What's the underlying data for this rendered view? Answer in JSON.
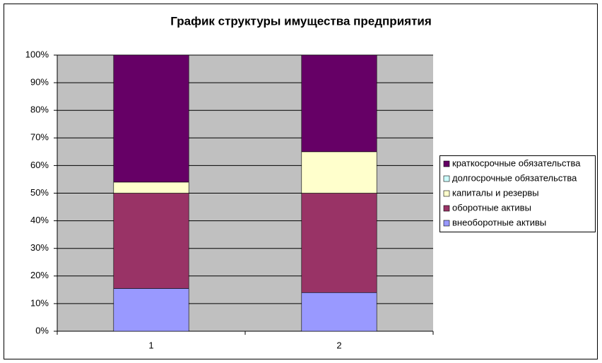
{
  "chart_data": {
    "type": "stacked_bar",
    "title": "График структуры имущества предприятия",
    "categories": [
      "1",
      "2"
    ],
    "series": [
      {
        "name": "внеоборотные активы",
        "color": "#9999ff",
        "values": [
          15.5,
          14
        ]
      },
      {
        "name": "оборотные активы",
        "color": "#993366",
        "values": [
          34.5,
          36
        ]
      },
      {
        "name": "капиталы и резервы",
        "color": "#ffffcc",
        "values": [
          4,
          15
        ]
      },
      {
        "name": "долгосрочные обязательства",
        "color": "#ccffff",
        "values": [
          0,
          0
        ]
      },
      {
        "name": "краткосрочные обязательства",
        "color": "#660066",
        "values": [
          46,
          35
        ]
      }
    ],
    "ylim": [
      0,
      100
    ],
    "yticks": [
      {
        "value": 0,
        "label": "0%"
      },
      {
        "value": 10,
        "label": "10%"
      },
      {
        "value": 20,
        "label": "20%"
      },
      {
        "value": 30,
        "label": "30%"
      },
      {
        "value": 40,
        "label": "40%"
      },
      {
        "value": 50,
        "label": "50%"
      },
      {
        "value": 60,
        "label": "60%"
      },
      {
        "value": 70,
        "label": "70%"
      },
      {
        "value": 80,
        "label": "80%"
      },
      {
        "value": 90,
        "label": "90%"
      },
      {
        "value": 100,
        "label": "100%"
      }
    ],
    "grid": true,
    "legend": "right"
  }
}
